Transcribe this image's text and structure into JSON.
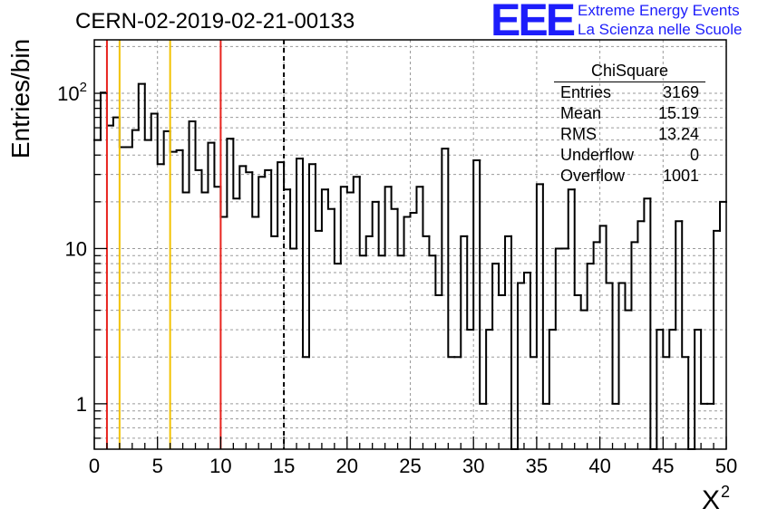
{
  "logo": {
    "mark": "EEE",
    "line1": "Extreme Energy Events",
    "line2": "La Scienza nelle Scuole",
    "color": "#1d1dfb"
  },
  "chart_data": {
    "type": "bar",
    "style": "step-histogram",
    "title": "CERN-02-2019-02-21-00133",
    "xlabel": "X",
    "xlabel_sup": "2",
    "ylabel": "Entries/bin",
    "xlim": [
      0,
      50
    ],
    "ylim": [
      0.51,
      221
    ],
    "log_y": true,
    "grid": true,
    "x_ticks": [
      0,
      5,
      10,
      15,
      20,
      25,
      30,
      35,
      40,
      45,
      50
    ],
    "y_ticks": [
      {
        "value": 1,
        "label": "1"
      },
      {
        "value": 10,
        "label": "10"
      },
      {
        "value": 100,
        "label": "10",
        "sup": "2"
      }
    ],
    "line_color": "#000000",
    "values": [
      50,
      101,
      62,
      70,
      45,
      45,
      58,
      115,
      50,
      74,
      35,
      57,
      42,
      43,
      23,
      66,
      32,
      23,
      48,
      25,
      16,
      51,
      21,
      34,
      31,
      16,
      29,
      32,
      12,
      36,
      24,
      10,
      38,
      2,
      35,
      13,
      24,
      18,
      8,
      25,
      23,
      29,
      9,
      12,
      20,
      9,
      25,
      18,
      9,
      16,
      17,
      25,
      12,
      9,
      5,
      44,
      2,
      2,
      12,
      3,
      37,
      1,
      3,
      8,
      5,
      12,
      0,
      6,
      7,
      2,
      26,
      1,
      3,
      10,
      10,
      24,
      5,
      4,
      8,
      11,
      14,
      6,
      1,
      6,
      4,
      11,
      15,
      21,
      0,
      3,
      2,
      3,
      15,
      2,
      0,
      3,
      1,
      1,
      13,
      20
    ],
    "markers": [
      {
        "x": 1,
        "color": "#e8231e",
        "style": "solid"
      },
      {
        "x": 2,
        "color": "#f2c200",
        "style": "solid"
      },
      {
        "x": 6,
        "color": "#f2c200",
        "style": "solid"
      },
      {
        "x": 10,
        "color": "#e8231e",
        "style": "solid"
      },
      {
        "x": 15,
        "color": "#000000",
        "style": "dashed"
      }
    ],
    "stats": {
      "title": "ChiSquare",
      "rows": [
        {
          "label": "Entries",
          "value": "3169"
        },
        {
          "label": "Mean",
          "value": "15.19"
        },
        {
          "label": "RMS",
          "value": "13.24"
        },
        {
          "label": "Underflow",
          "value": "0"
        },
        {
          "label": "Overflow",
          "value": "1001"
        }
      ]
    }
  }
}
